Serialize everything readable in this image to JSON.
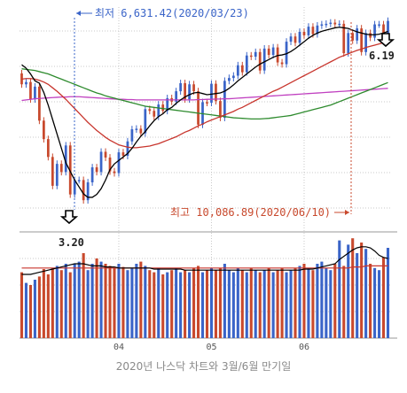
{
  "caption": "2020년 나스닥 차트와 3월/6월 만기일",
  "chart_data": {
    "type": "candlestick",
    "title": "",
    "annotations": {
      "low_label": "최저 6,631.42(2020/03/23)",
      "high_label": "최고 10,086.89(2020/06/10)",
      "low_marker_value": "3.20",
      "high_marker_value": "6.19"
    },
    "x_tick_labels": [
      "04",
      "05",
      "06"
    ],
    "colors": {
      "up": "#3a64c8",
      "down": "#c8492d",
      "ma_short": "#000000",
      "ma_mid": "#c8352d",
      "ma_long": "#2e8b2e",
      "ma_longest": "#c040c0",
      "annotation_blue": "#3a64c8",
      "annotation_red": "#c8492d",
      "grid": "#c8c8c8"
    },
    "price_ylim": [
      6400,
      10300
    ],
    "volume_ylim": [
      0,
      100
    ],
    "price_series": {
      "open": [
        9150,
        8960,
        9000,
        8700,
        8920,
        8330,
        8010,
        7700,
        7200,
        7580,
        7440,
        7900,
        7050,
        7300,
        7300,
        6950,
        7260,
        7520,
        7440,
        7790,
        7690,
        7450,
        7420,
        7780,
        7720,
        7970,
        8180,
        8190,
        8110,
        8530,
        8500,
        8400,
        8610,
        8500,
        8720,
        8660,
        8840,
        8980,
        8700,
        8960,
        8840,
        8260,
        8650,
        8640,
        8970,
        8670,
        8380,
        9020,
        9070,
        9110,
        9290,
        9170,
        9460,
        9440,
        9520,
        9200,
        9580,
        9470,
        9600,
        9340,
        9310,
        9700,
        9790,
        9680,
        9870,
        9810,
        9960,
        9830,
        9980,
        10000,
        10010,
        10030,
        10000,
        10010,
        9500,
        9850,
        9720,
        9930,
        9520,
        9850,
        9770,
        10000,
        10000,
        9780
      ],
      "close": [
        8960,
        9000,
        8700,
        8920,
        8330,
        8010,
        7700,
        7200,
        7580,
        7440,
        7900,
        7050,
        7300,
        7300,
        6950,
        7260,
        7520,
        7440,
        7790,
        7690,
        7450,
        7420,
        7780,
        7720,
        7970,
        8180,
        8190,
        8110,
        8530,
        8500,
        8400,
        8610,
        8500,
        8720,
        8660,
        8840,
        8980,
        8700,
        8960,
        8840,
        8260,
        8650,
        8640,
        8970,
        8670,
        8380,
        9020,
        9070,
        9110,
        9290,
        9170,
        9460,
        9440,
        9520,
        9200,
        9580,
        9470,
        9600,
        9340,
        9310,
        9700,
        9790,
        9680,
        9870,
        9810,
        9960,
        9830,
        9980,
        10000,
        10010,
        10030,
        10000,
        10010,
        9500,
        9850,
        9720,
        9930,
        9520,
        9850,
        9770,
        10000,
        10000,
        9780,
        10060
      ],
      "ma5": [
        9300,
        9240,
        9140,
        9020,
        8980,
        8820,
        8600,
        8350,
        8100,
        7850,
        7600,
        7450,
        7300,
        7180,
        7060,
        7000,
        7000,
        7050,
        7150,
        7300,
        7480,
        7580,
        7640,
        7700,
        7760,
        7850,
        7960,
        8060,
        8140,
        8240,
        8330,
        8400,
        8450,
        8520,
        8560,
        8630,
        8690,
        8740,
        8780,
        8810,
        8820,
        8800,
        8780,
        8790,
        8800,
        8810,
        8840,
        8890,
        8950,
        9020,
        9080,
        9140,
        9200,
        9260,
        9310,
        9350,
        9390,
        9430,
        9460,
        9470,
        9490,
        9530,
        9580,
        9640,
        9700,
        9760,
        9810,
        9850,
        9880,
        9900,
        9920,
        9940,
        9950,
        9940,
        9930,
        9900,
        9870,
        9850,
        9830,
        9820,
        9820,
        9830,
        9850,
        9880
      ],
      "ma20": [
        9050,
        9060,
        9060,
        9050,
        9030,
        9000,
        8960,
        8900,
        8840,
        8770,
        8700,
        8620,
        8540,
        8460,
        8380,
        8300,
        8230,
        8160,
        8100,
        8040,
        7990,
        7950,
        7910,
        7890,
        7870,
        7860,
        7860,
        7870,
        7880,
        7890,
        7910,
        7930,
        7960,
        7990,
        8020,
        8050,
        8090,
        8130,
        8160,
        8200,
        8240,
        8270,
        8310,
        8340,
        8370,
        8400,
        8430,
        8460,
        8490,
        8530,
        8560,
        8600,
        8640,
        8680,
        8720,
        8760,
        8800,
        8840,
        8870,
        8910,
        8950,
        8990,
        9030,
        9070,
        9110,
        9150,
        9190,
        9230,
        9270,
        9310,
        9350,
        9390,
        9430,
        9460,
        9490,
        9520,
        9550,
        9570,
        9600,
        9620,
        9640,
        9660,
        9680,
        9710
      ],
      "ma60": [
        9230,
        9220,
        9210,
        9200,
        9180,
        9160,
        9140,
        9110,
        9080,
        9050,
        9020,
        8990,
        8960,
        8930,
        8900,
        8870,
        8840,
        8810,
        8790,
        8760,
        8740,
        8720,
        8700,
        8680,
        8660,
        8640,
        8620,
        8600,
        8580,
        8570,
        8560,
        8550,
        8540,
        8530,
        8520,
        8510,
        8500,
        8490,
        8480,
        8470,
        8460,
        8450,
        8440,
        8430,
        8420,
        8410,
        8400,
        8390,
        8380,
        8375,
        8370,
        8365,
        8360,
        8360,
        8360,
        8365,
        8370,
        8380,
        8390,
        8400,
        8410,
        8420,
        8440,
        8460,
        8480,
        8500,
        8520,
        8540,
        8560,
        8580,
        8600,
        8630,
        8660,
        8690,
        8720,
        8750,
        8780,
        8810,
        8840,
        8870,
        8900,
        8930,
        8960,
        8990
      ],
      "ma120": [
        8680,
        8690,
        8700,
        8710,
        8715,
        8720,
        8725,
        8730,
        8735,
        8740,
        8740,
        8745,
        8745,
        8745,
        8740,
        8735,
        8730,
        8725,
        8720,
        8715,
        8710,
        8705,
        8700,
        8700,
        8695,
        8695,
        8690,
        8690,
        8690,
        8690,
        8690,
        8690,
        8690,
        8690,
        8690,
        8690,
        8690,
        8690,
        8690,
        8690,
        8695,
        8695,
        8700,
        8700,
        8705,
        8705,
        8710,
        8710,
        8715,
        8720,
        8725,
        8730,
        8735,
        8740,
        8745,
        8750,
        8755,
        8760,
        8765,
        8770,
        8775,
        8780,
        8785,
        8790,
        8795,
        8800,
        8805,
        8810,
        8815,
        8820,
        8825,
        8830,
        8835,
        8840,
        8845,
        8850,
        8855,
        8860,
        8865,
        8870,
        8875,
        8880,
        8885,
        8890
      ]
    },
    "volume_series": {
      "values": [
        62,
        52,
        50,
        55,
        58,
        65,
        60,
        66,
        68,
        64,
        70,
        62,
        70,
        72,
        80,
        64,
        70,
        75,
        72,
        70,
        68,
        66,
        70,
        67,
        64,
        66,
        70,
        72,
        68,
        64,
        62,
        66,
        60,
        62,
        64,
        66,
        62,
        64,
        62,
        66,
        68,
        62,
        64,
        66,
        64,
        66,
        70,
        64,
        62,
        66,
        64,
        62,
        66,
        64,
        62,
        64,
        66,
        62,
        64,
        66,
        62,
        64,
        66,
        68,
        70,
        66,
        64,
        70,
        72,
        66,
        64,
        70,
        92,
        68,
        88,
        94,
        80,
        90,
        84,
        70,
        66,
        64,
        76,
        85
      ],
      "ma_short": [
        60,
        60,
        60,
        61,
        62,
        63,
        64,
        65,
        66,
        67,
        68,
        69,
        70,
        70,
        70,
        69,
        68,
        68,
        68,
        67,
        67,
        67,
        66,
        66,
        66,
        66,
        66,
        66,
        66,
        66,
        65,
        65,
        65,
        65,
        65,
        65,
        65,
        64,
        64,
        64,
        64,
        64,
        64,
        64,
        64,
        64,
        64,
        64,
        64,
        64,
        64,
        64,
        64,
        64,
        64,
        64,
        64,
        64,
        64,
        64,
        64,
        64,
        64,
        64,
        65,
        65,
        65,
        66,
        67,
        68,
        69,
        70,
        74,
        77,
        80,
        83,
        85,
        86,
        86,
        85,
        82,
        78,
        76,
        75
      ],
      "ma_long": [
        66,
        66,
        66,
        66,
        66,
        66,
        66,
        66,
        66,
        66,
        66,
        66,
        66,
        66,
        66,
        66,
        66,
        66,
        66,
        66,
        66,
        66,
        66,
        66,
        66,
        66,
        66,
        66,
        66,
        66,
        66,
        66,
        66,
        66,
        66,
        66,
        66,
        66,
        66,
        66,
        66,
        66,
        66,
        66,
        66,
        66,
        66,
        66,
        66,
        66,
        66,
        66,
        66,
        66,
        66,
        66,
        66,
        66,
        66,
        66,
        66,
        66,
        66,
        66,
        66,
        66,
        66,
        66,
        66,
        66,
        66,
        66,
        66,
        66,
        66,
        67,
        67,
        67,
        68,
        68,
        68,
        68,
        68,
        68
      ]
    }
  }
}
